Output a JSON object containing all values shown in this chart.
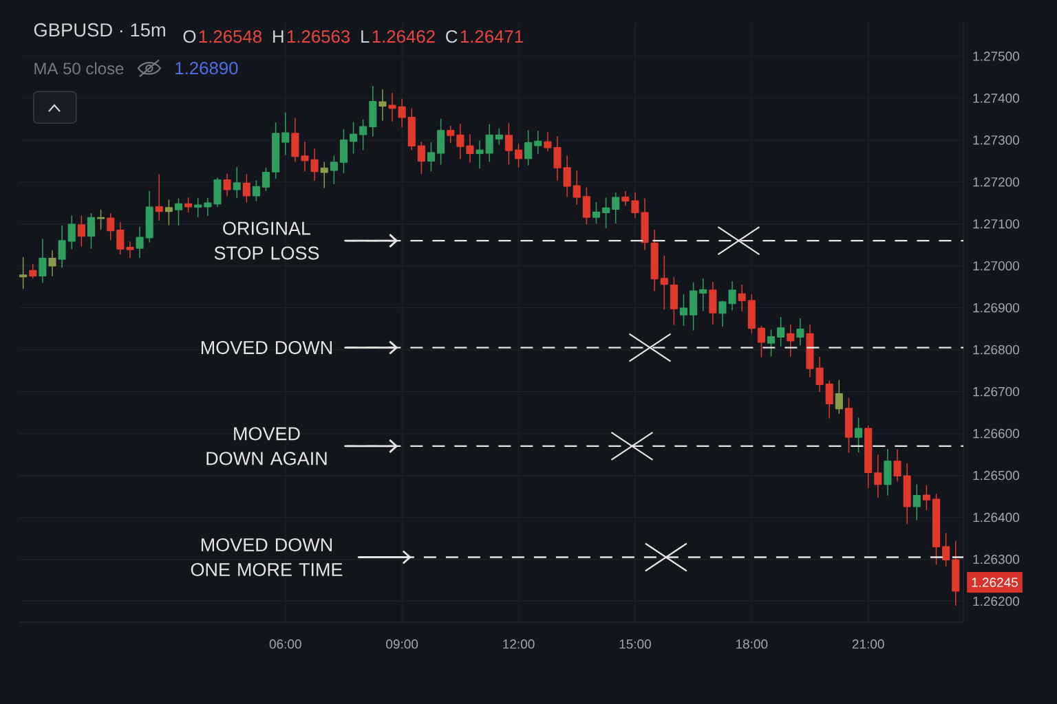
{
  "chart_data": {
    "type": "candlestick",
    "title": "GBPUSD · 15m",
    "annotations": [
      "O",
      "1.26548",
      "H",
      "1.26563",
      "L",
      "1.26462",
      "C",
      "1.26471",
      "MA 50 close",
      "1.26890",
      {
        "text": "1.26245",
        "x": 23.25,
        "y": 1.26245
      }
    ],
    "x": [
      -0.75,
      -0.5,
      -0.25,
      0,
      0.25,
      0.5,
      0.75,
      1,
      1.25,
      1.5,
      1.75,
      2,
      2.25,
      2.5,
      2.75,
      3,
      3.25,
      3.5,
      3.75,
      4,
      4.25,
      4.5,
      4.75,
      5,
      5.25,
      5.5,
      5.75,
      6,
      6.25,
      6.5,
      6.75,
      7,
      7.25,
      7.5,
      7.75,
      8,
      8.25,
      8.5,
      8.75,
      9,
      9.25,
      9.5,
      9.75,
      10,
      10.25,
      10.5,
      10.75,
      11,
      11.25,
      11.5,
      11.75,
      12,
      12.25,
      12.5,
      12.75,
      13,
      13.25,
      13.5,
      13.75,
      14,
      14.25,
      14.5,
      14.75,
      15,
      15.25,
      15.5,
      15.75,
      16,
      16.25,
      16.5,
      16.75,
      17,
      17.25,
      17.5,
      17.75,
      18,
      18.25,
      18.5,
      18.75,
      19,
      19.25,
      19.5,
      19.75,
      20,
      20.25,
      20.5,
      20.75,
      21,
      21.25,
      21.5,
      21.75,
      22,
      22.25,
      22.5,
      22.75,
      23,
      23.25
    ],
    "ohlc": [
      [
        1.26974,
        1.2702,
        1.26946,
        1.26978
      ],
      [
        1.26989,
        1.27004,
        1.26971,
        1.26976
      ],
      [
        1.26976,
        1.27064,
        1.2696,
        1.27018
      ],
      [
        1.27,
        1.27036,
        1.26976,
        1.27018
      ],
      [
        1.27016,
        1.27096,
        1.26996,
        1.2706
      ],
      [
        1.27059,
        1.27119,
        1.27041,
        1.27099
      ],
      [
        1.27098,
        1.27118,
        1.27047,
        1.27071
      ],
      [
        1.27071,
        1.27125,
        1.27042,
        1.27115
      ],
      [
        1.27113,
        1.27133,
        1.27087,
        1.27115
      ],
      [
        1.27114,
        1.27124,
        1.27062,
        1.27084
      ],
      [
        1.27085,
        1.27103,
        1.27028,
        1.2704
      ],
      [
        1.27044,
        1.27057,
        1.2702,
        1.27039
      ],
      [
        1.27042,
        1.27092,
        1.2702,
        1.27068
      ],
      [
        1.27067,
        1.27178,
        1.27057,
        1.2714
      ],
      [
        1.27141,
        1.27217,
        1.27109,
        1.2713
      ],
      [
        1.2713,
        1.27157,
        1.27098,
        1.27139
      ],
      [
        1.27134,
        1.2716,
        1.27097,
        1.27148
      ],
      [
        1.27148,
        1.27162,
        1.27128,
        1.27141
      ],
      [
        1.2714,
        1.27161,
        1.27117,
        1.27145
      ],
      [
        1.27141,
        1.27161,
        1.2712,
        1.2715
      ],
      [
        1.27148,
        1.2721,
        1.27141,
        1.27205
      ],
      [
        1.27205,
        1.27219,
        1.27167,
        1.27182
      ],
      [
        1.27182,
        1.27235,
        1.27163,
        1.27198
      ],
      [
        1.27197,
        1.27218,
        1.27152,
        1.27167
      ],
      [
        1.27167,
        1.27203,
        1.27155,
        1.27189
      ],
      [
        1.27188,
        1.27233,
        1.2718,
        1.27223
      ],
      [
        1.27224,
        1.27341,
        1.27209,
        1.27316
      ],
      [
        1.27295,
        1.27365,
        1.27265,
        1.27317
      ],
      [
        1.27316,
        1.27352,
        1.27249,
        1.27261
      ],
      [
        1.27262,
        1.27295,
        1.27226,
        1.27251
      ],
      [
        1.27253,
        1.27279,
        1.27204,
        1.27225
      ],
      [
        1.27223,
        1.27247,
        1.27187,
        1.27233
      ],
      [
        1.27228,
        1.27262,
        1.27196,
        1.27247
      ],
      [
        1.27247,
        1.27325,
        1.27222,
        1.273
      ],
      [
        1.27297,
        1.27342,
        1.27269,
        1.27314
      ],
      [
        1.27313,
        1.27348,
        1.27277,
        1.27332
      ],
      [
        1.27332,
        1.27428,
        1.27309,
        1.27392
      ],
      [
        1.27381,
        1.2742,
        1.27347,
        1.27391
      ],
      [
        1.27383,
        1.27412,
        1.27345,
        1.27376
      ],
      [
        1.27379,
        1.27398,
        1.27331,
        1.27354
      ],
      [
        1.27354,
        1.27375,
        1.27277,
        1.27286
      ],
      [
        1.27286,
        1.27295,
        1.2722,
        1.2725
      ],
      [
        1.2725,
        1.27294,
        1.27226,
        1.2727
      ],
      [
        1.27269,
        1.2735,
        1.27242,
        1.27323
      ],
      [
        1.27323,
        1.27333,
        1.27294,
        1.27311
      ],
      [
        1.27312,
        1.27338,
        1.27256,
        1.27285
      ],
      [
        1.27286,
        1.27313,
        1.27247,
        1.27268
      ],
      [
        1.27268,
        1.27298,
        1.27233,
        1.27276
      ],
      [
        1.27269,
        1.27337,
        1.27249,
        1.27312
      ],
      [
        1.27303,
        1.27327,
        1.2729,
        1.27312
      ],
      [
        1.27311,
        1.2734,
        1.27243,
        1.27275
      ],
      [
        1.27276,
        1.2729,
        1.27236,
        1.27256
      ],
      [
        1.27256,
        1.27323,
        1.2724,
        1.27294
      ],
      [
        1.27287,
        1.27321,
        1.27268,
        1.27297
      ],
      [
        1.27296,
        1.27318,
        1.27274,
        1.27282
      ],
      [
        1.27282,
        1.27308,
        1.27204,
        1.27234
      ],
      [
        1.27234,
        1.27262,
        1.27165,
        1.2719
      ],
      [
        1.27191,
        1.27227,
        1.27147,
        1.27164
      ],
      [
        1.27165,
        1.27186,
        1.271,
        1.27116
      ],
      [
        1.27116,
        1.27151,
        1.27102,
        1.27128
      ],
      [
        1.27127,
        1.27162,
        1.27091,
        1.27138
      ],
      [
        1.27135,
        1.27174,
        1.27102,
        1.27163
      ],
      [
        1.27164,
        1.27177,
        1.27144,
        1.27155
      ],
      [
        1.27155,
        1.27174,
        1.27115,
        1.27127
      ],
      [
        1.27127,
        1.2716,
        1.27039,
        1.27056
      ],
      [
        1.27054,
        1.27085,
        1.26941,
        1.26969
      ],
      [
        1.2697,
        1.27023,
        1.26897,
        1.26956
      ],
      [
        1.26954,
        1.26973,
        1.2686,
        1.26898
      ],
      [
        1.26883,
        1.26931,
        1.26858,
        1.26899
      ],
      [
        1.26883,
        1.2696,
        1.26847,
        1.2694
      ],
      [
        1.26935,
        1.26969,
        1.26893,
        1.26943
      ],
      [
        1.26942,
        1.26961,
        1.26861,
        1.26888
      ],
      [
        1.26887,
        1.26916,
        1.26856,
        1.26914
      ],
      [
        1.2691,
        1.26962,
        1.26895,
        1.26942
      ],
      [
        1.26933,
        1.26954,
        1.26892,
        1.26917
      ],
      [
        1.26917,
        1.26931,
        1.2684,
        1.26851
      ],
      [
        1.26851,
        1.26856,
        1.26783,
        1.26818
      ],
      [
        1.26816,
        1.26847,
        1.26785,
        1.26831
      ],
      [
        1.2683,
        1.26877,
        1.26809,
        1.26852
      ],
      [
        1.26838,
        1.26859,
        1.26785,
        1.26821
      ],
      [
        1.2683,
        1.26874,
        1.26811,
        1.26849
      ],
      [
        1.26838,
        1.26859,
        1.26735,
        1.26755
      ],
      [
        1.26756,
        1.26782,
        1.267,
        1.26717
      ],
      [
        1.26718,
        1.26725,
        1.26637,
        1.26671
      ],
      [
        1.26659,
        1.26727,
        1.26648,
        1.26695
      ],
      [
        1.2666,
        1.26684,
        1.26555,
        1.26591
      ],
      [
        1.26591,
        1.26637,
        1.26556,
        1.26612
      ],
      [
        1.26612,
        1.26618,
        1.2647,
        1.26507
      ],
      [
        1.26506,
        1.26549,
        1.26448,
        1.26479
      ],
      [
        1.26479,
        1.26562,
        1.26453,
        1.26534
      ],
      [
        1.26534,
        1.26561,
        1.26486,
        1.26499
      ],
      [
        1.26499,
        1.26528,
        1.26385,
        1.26426
      ],
      [
        1.26426,
        1.26478,
        1.26394,
        1.26452
      ],
      [
        1.26453,
        1.26476,
        1.26418,
        1.26442
      ],
      [
        1.26443,
        1.26455,
        1.26288,
        1.2633
      ],
      [
        1.2633,
        1.26362,
        1.26284,
        1.26299
      ],
      [
        1.26299,
        1.26343,
        1.2619,
        1.26224
      ]
    ],
    "colors": [
      "#8a9b4b",
      "#e0392c",
      "#2f9e5f",
      "#8a9b4b",
      "#2f9e5f",
      "#2f9e5f",
      "#e0392c",
      "#2f9e5f",
      "#8a9b4b",
      "#e0392c",
      "#e0392c",
      "#e0392c",
      "#2f9e5f",
      "#2f9e5f",
      "#e0392c",
      "#8a9b4b",
      "#2f9e5f",
      "#e0392c",
      "#2f9e5f",
      "#2f9e5f",
      "#2f9e5f",
      "#e0392c",
      "#2f9e5f",
      "#e0392c",
      "#2f9e5f",
      "#2f9e5f",
      "#2f9e5f",
      "#2f9e5f",
      "#e0392c",
      "#e0392c",
      "#e0392c",
      "#8a9b4b",
      "#2f9e5f",
      "#2f9e5f",
      "#2f9e5f",
      "#2f9e5f",
      "#2f9e5f",
      "#8a9b4b",
      "#e0392c",
      "#e0392c",
      "#e0392c",
      "#e0392c",
      "#2f9e5f",
      "#2f9e5f",
      "#e0392c",
      "#e0392c",
      "#e0392c",
      "#2f9e5f",
      "#2f9e5f",
      "#2f9e5f",
      "#e0392c",
      "#e0392c",
      "#2f9e5f",
      "#2f9e5f",
      "#e0392c",
      "#e0392c",
      "#e0392c",
      "#e0392c",
      "#e0392c",
      "#2f9e5f",
      "#2f9e5f",
      "#2f9e5f",
      "#e0392c",
      "#e0392c",
      "#e0392c",
      "#e0392c",
      "#e0392c",
      "#e0392c",
      "#2f9e5f",
      "#2f9e5f",
      "#2f9e5f",
      "#e0392c",
      "#2f9e5f",
      "#2f9e5f",
      "#e0392c",
      "#e0392c",
      "#e0392c",
      "#2f9e5f",
      "#2f9e5f",
      "#e0392c",
      "#2f9e5f",
      "#e0392c",
      "#e0392c",
      "#e0392c",
      "#8a9b4b",
      "#e0392c",
      "#2f9e5f",
      "#e0392c",
      "#e0392c",
      "#2f9e5f",
      "#e0392c",
      "#e0392c",
      "#2f9e5f",
      "#e0392c",
      "#e0392c",
      "#e0392c",
      "#e0392c"
    ],
    "xlim": [
      -0.85,
      23.45
    ],
    "ylim": [
      1.2615,
      1.2758
    ],
    "xticks": [
      {
        "value": 6,
        "label": "06:00"
      },
      {
        "value": 9,
        "label": "09:00"
      },
      {
        "value": 12,
        "label": "12:00"
      },
      {
        "value": 15,
        "label": "15:00"
      },
      {
        "value": 18,
        "label": "18:00"
      },
      {
        "value": 21,
        "label": "21:00"
      }
    ],
    "yticks": [
      {
        "value": 1.262,
        "label": "1.26200"
      },
      {
        "value": 1.263,
        "label": "1.26300"
      },
      {
        "value": 1.264,
        "label": "1.26400"
      },
      {
        "value": 1.265,
        "label": "1.26500"
      },
      {
        "value": 1.266,
        "label": "1.26600"
      },
      {
        "value": 1.267,
        "label": "1.26700"
      },
      {
        "value": 1.268,
        "label": "1.26800"
      },
      {
        "value": 1.269,
        "label": "1.26900"
      },
      {
        "value": 1.27,
        "label": "1.27000"
      },
      {
        "value": 1.271,
        "label": "1.27100"
      },
      {
        "value": 1.272,
        "label": "1.27200"
      },
      {
        "value": 1.273,
        "label": "1.27300"
      },
      {
        "value": 1.274,
        "label": "1.27400"
      },
      {
        "value": 1.275,
        "label": "1.27500"
      }
    ],
    "grid": true,
    "ref_lines": [
      {
        "axis": "y",
        "value": 1.2706,
        "label": "ORIGINAL STOP LOSS",
        "color": "#e6e6e6",
        "line_style": "dashed"
      },
      {
        "axis": "y",
        "value": 1.26805,
        "label": "MOVED DOWN",
        "color": "#e6e6e6",
        "line_style": "dashed"
      },
      {
        "axis": "y",
        "value": 1.2657,
        "label": "MOVED DOWN AGAIN",
        "color": "#e6e6e6",
        "line_style": "dashed"
      },
      {
        "axis": "y",
        "value": 1.26305,
        "label": "MOVED DOWN ONE MORE TIME",
        "color": "#e6e6e6",
        "line_style": "dashed"
      }
    ]
  }
}
